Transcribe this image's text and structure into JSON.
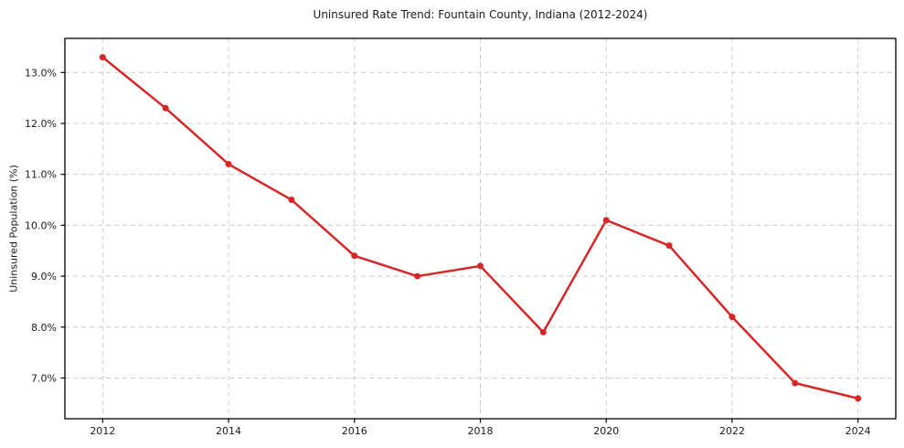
{
  "chart_data": {
    "type": "line",
    "title": "Uninsured Rate Trend: Fountain County, Indiana (2012-2024)",
    "xlabel": "",
    "ylabel": "Uninsured Population (%)",
    "x": [
      2012,
      2013,
      2014,
      2015,
      2016,
      2017,
      2018,
      2019,
      2020,
      2021,
      2022,
      2023,
      2024
    ],
    "values": [
      13.3,
      12.3,
      11.2,
      10.5,
      9.4,
      9.0,
      9.2,
      7.9,
      10.1,
      9.6,
      8.2,
      6.9,
      6.6
    ],
    "xlim": [
      2011.4,
      2024.6
    ],
    "ylim": [
      6.2,
      13.67
    ],
    "xticks": [
      2012,
      2014,
      2016,
      2018,
      2020,
      2022,
      2024
    ],
    "xtick_labels": [
      "2012",
      "2014",
      "2016",
      "2018",
      "2020",
      "2022",
      "2024"
    ],
    "yticks": [
      7.0,
      8.0,
      9.0,
      10.0,
      11.0,
      12.0,
      13.0
    ],
    "ytick_labels": [
      "7.0%",
      "8.0%",
      "9.0%",
      "10.0%",
      "11.0%",
      "12.0%",
      "13.0%"
    ],
    "grid": true,
    "grid_style": "dashed",
    "legend": false,
    "line_color": "#d62728",
    "marker": "circle",
    "marker_radius": 3.5,
    "line_width": 2.5,
    "grid_color": "#cccccc",
    "spine_color": "#000000",
    "text_color": "#1a1a1a",
    "background": "#ffffff"
  }
}
